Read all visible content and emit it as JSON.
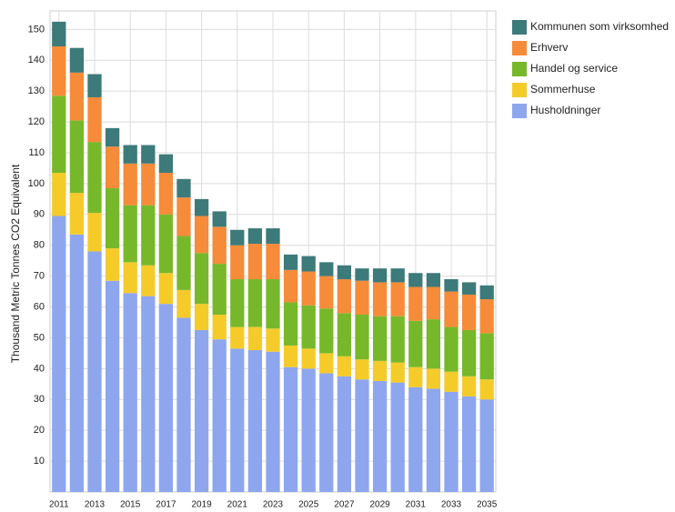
{
  "chart_data": {
    "type": "stacked_bar",
    "y_label": "Thousand Metric Tonnes CO2 Equivalent",
    "categories": [
      "2011",
      null,
      "2013",
      null,
      "2015",
      null,
      "2017",
      null,
      "2019",
      null,
      "2021",
      null,
      "2023",
      null,
      "2025",
      null,
      "2027",
      null,
      "2029",
      null,
      "2031",
      null,
      "2033",
      null,
      "2035"
    ],
    "series": [
      {
        "name": "Husholdninger",
        "color": "#8ea6ee",
        "values": [
          89.5,
          83.5,
          78,
          68.5,
          64.5,
          63.5,
          61,
          56.5,
          52.5,
          49.5,
          46.5,
          46,
          45.5,
          40.5,
          40,
          38.5,
          37.5,
          36.5,
          36,
          35.5,
          34,
          33.5,
          32.5,
          31,
          30
        ]
      },
      {
        "name": "Sommerhuse",
        "color": "#f5cb2a",
        "values": [
          14,
          13.5,
          12.5,
          10.5,
          10,
          10,
          10,
          9,
          8.5,
          8,
          7,
          7.5,
          7.5,
          7,
          6.5,
          6.5,
          6.5,
          6.5,
          6.5,
          6.5,
          6.5,
          6.5,
          6.5,
          6.5,
          6.5
        ]
      },
      {
        "name": "Handel og service",
        "color": "#77b82a",
        "values": [
          25,
          23.5,
          23,
          19.5,
          18.5,
          19.5,
          19,
          17.5,
          16.5,
          16.5,
          15.5,
          15.5,
          16,
          14,
          14,
          14.5,
          14,
          14.5,
          14.5,
          15,
          15,
          16,
          14.5,
          15,
          15
        ]
      },
      {
        "name": "Erhverv",
        "color": "#f68b39",
        "values": [
          16,
          15.5,
          14.5,
          13.5,
          13.5,
          13.5,
          13.5,
          12.5,
          12,
          12,
          11,
          11.5,
          11.5,
          10.5,
          11,
          10.5,
          11,
          11,
          11,
          11,
          11,
          10.5,
          11.5,
          11.5,
          11
        ]
      },
      {
        "name": "Kommunen som virksomhed",
        "color": "#3d7a7a",
        "values": [
          8,
          8,
          7.5,
          6,
          6,
          6,
          6,
          6,
          5.5,
          5,
          5,
          5,
          5,
          5,
          5,
          4.5,
          4.5,
          4,
          4.5,
          4.5,
          4.5,
          4.5,
          4,
          4,
          4.5
        ]
      }
    ],
    "ylim": [
      0,
      156
    ],
    "yticks": [
      10,
      20,
      30,
      40,
      50,
      60,
      70,
      80,
      90,
      100,
      110,
      120,
      130,
      140,
      150
    ],
    "grid": true,
    "legend": "right"
  }
}
